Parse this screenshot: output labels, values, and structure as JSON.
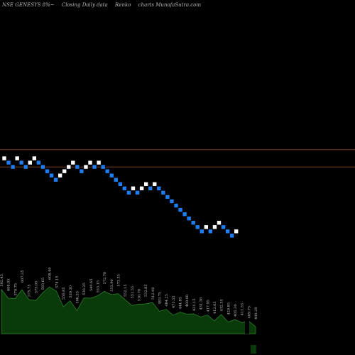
{
  "header": {
    "symbol": "NSE GENESYS 8%~",
    "chart_desc": "Closing Daily data",
    "chart_kind": "Renko",
    "watermark": "charts MunafaSutra.com"
  },
  "colors": {
    "background": "#000000",
    "up_brick": "#ffffff",
    "down_brick": "#1e7ef0",
    "level_line": "#a0522d",
    "volume_fill": "#0a3a0a",
    "volume_edge": "#2e8b2e"
  },
  "chart_data": {
    "type": "renko",
    "bricks": [
      {
        "dir": "up",
        "level": 0
      },
      {
        "dir": "down",
        "level": -1
      },
      {
        "dir": "down",
        "level": -2
      },
      {
        "dir": "up",
        "level": 0
      },
      {
        "dir": "down",
        "level": -1
      },
      {
        "dir": "down",
        "level": -2
      },
      {
        "dir": "up",
        "level": -1
      },
      {
        "dir": "up",
        "level": 0
      },
      {
        "dir": "down",
        "level": -1
      },
      {
        "dir": "down",
        "level": -2
      },
      {
        "dir": "down",
        "level": -3
      },
      {
        "dir": "down",
        "level": -4
      },
      {
        "dir": "down",
        "level": -5
      },
      {
        "dir": "up",
        "level": -4
      },
      {
        "dir": "up",
        "level": -3
      },
      {
        "dir": "up",
        "level": -2
      },
      {
        "dir": "up",
        "level": -1
      },
      {
        "dir": "down",
        "level": -2
      },
      {
        "dir": "down",
        "level": -3
      },
      {
        "dir": "up",
        "level": -2
      },
      {
        "dir": "up",
        "level": -1
      },
      {
        "dir": "down",
        "level": -2
      },
      {
        "dir": "up",
        "level": -1
      },
      {
        "dir": "down",
        "level": -2
      },
      {
        "dir": "down",
        "level": -3
      },
      {
        "dir": "down",
        "level": -4
      },
      {
        "dir": "down",
        "level": -5
      },
      {
        "dir": "down",
        "level": -6
      },
      {
        "dir": "down",
        "level": -7
      },
      {
        "dir": "down",
        "level": -8
      },
      {
        "dir": "up",
        "level": -7
      },
      {
        "dir": "down",
        "level": -8
      },
      {
        "dir": "up",
        "level": -7
      },
      {
        "dir": "up",
        "level": -6
      },
      {
        "dir": "down",
        "level": -7
      },
      {
        "dir": "up",
        "level": -6
      },
      {
        "dir": "down",
        "level": -7
      },
      {
        "dir": "down",
        "level": -8
      },
      {
        "dir": "down",
        "level": -9
      },
      {
        "dir": "down",
        "level": -10
      },
      {
        "dir": "down",
        "level": -11
      },
      {
        "dir": "down",
        "level": -12
      },
      {
        "dir": "down",
        "level": -13
      },
      {
        "dir": "down",
        "level": -14
      },
      {
        "dir": "down",
        "level": -15
      },
      {
        "dir": "down",
        "level": -16
      },
      {
        "dir": "down",
        "level": -17
      },
      {
        "dir": "up",
        "level": -16
      },
      {
        "dir": "down",
        "level": -17
      },
      {
        "dir": "up",
        "level": -16
      },
      {
        "dir": "up",
        "level": -15
      },
      {
        "dir": "down",
        "level": -16
      },
      {
        "dir": "down",
        "level": -17
      },
      {
        "dir": "down",
        "level": -18
      },
      {
        "dir": "up",
        "level": -17
      }
    ],
    "level_lines": [
      2,
      -2
    ],
    "volume": [
      {
        "label": "592.45",
        "v": 0.78
      },
      {
        "label": "608.05",
        "v": 0.7
      },
      {
        "label": "570.75",
        "v": 0.62
      },
      {
        "label": "607.35",
        "v": 0.85
      },
      {
        "label": "575.75",
        "v": 0.6
      },
      {
        "label": "573.05",
        "v": 0.66
      },
      {
        "label": "593.65",
        "v": 0.72
      },
      {
        "label": "608.40",
        "v": 0.9
      },
      {
        "label": "574.15",
        "v": 0.75
      },
      {
        "label": "550.85",
        "v": 0.55
      },
      {
        "label": "530.30",
        "v": 0.58
      },
      {
        "label": "506.55",
        "v": 0.48
      },
      {
        "label": "526.25",
        "v": 0.63
      },
      {
        "label": "540.65",
        "v": 0.7
      },
      {
        "label": "553.15",
        "v": 0.67
      },
      {
        "label": "572.70",
        "v": 0.82
      },
      {
        "label": "553.90",
        "v": 0.69
      },
      {
        "label": "573.35",
        "v": 0.78
      },
      {
        "label": "552.15",
        "v": 0.6
      },
      {
        "label": "551.55",
        "v": 0.57
      },
      {
        "label": "510.70",
        "v": 0.52
      },
      {
        "label": "532.85",
        "v": 0.6
      },
      {
        "label": "512.40",
        "v": 0.55
      },
      {
        "label": "493.75",
        "v": 0.47
      },
      {
        "label": "484.25",
        "v": 0.43
      },
      {
        "label": "473.55",
        "v": 0.4
      },
      {
        "label": "444.85",
        "v": 0.38
      },
      {
        "label": "469.60",
        "v": 0.42
      },
      {
        "label": "421.15",
        "v": 0.35
      },
      {
        "label": "431.30",
        "v": 0.37
      },
      {
        "label": "417.95",
        "v": 0.33
      },
      {
        "label": "412.05",
        "v": 0.3
      },
      {
        "label": "432.55",
        "v": 0.34
      },
      {
        "label": "420.85",
        "v": 0.28
      },
      {
        "label": "405.30",
        "v": 0.25
      },
      {
        "label": "411.55",
        "v": 0.27
      },
      {
        "label": "409.75",
        "v": 0.22
      },
      {
        "label": "400.20",
        "v": 0.2
      }
    ]
  }
}
